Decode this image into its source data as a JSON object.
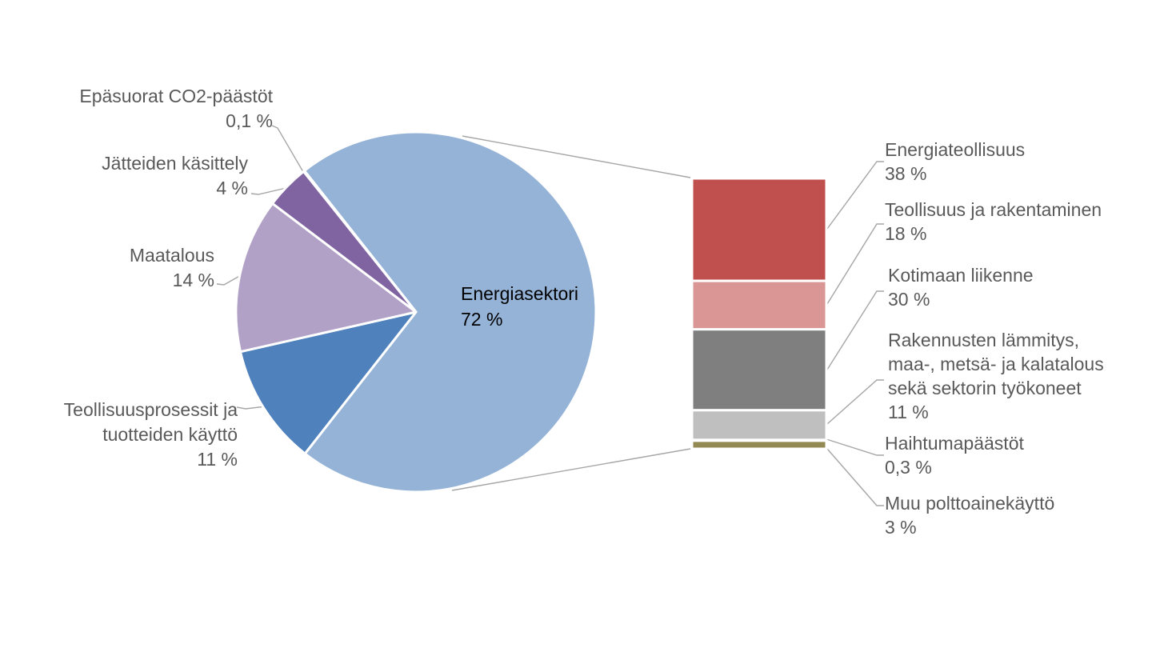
{
  "chart_data": {
    "type": "pie",
    "variant": "bar-of-pie",
    "title": "",
    "legend": "none",
    "label_color": "#595959",
    "inside_label_color": "#000000",
    "leader_line_color": "#A6A6A6",
    "pie": {
      "slices": [
        {
          "label": "Energiasektori",
          "pct_label": "72 %",
          "value": 72,
          "color": "#95B3D7",
          "label_position": "inside"
        },
        {
          "label": "Teollisuusprosessit ja tuotteiden käyttö",
          "pct_label": "11 %",
          "value": 11,
          "color": "#4F81BD",
          "label_position": "outside"
        },
        {
          "label": "Maatalous",
          "pct_label": "14 %",
          "value": 14,
          "color": "#B2A1C7",
          "label_position": "outside"
        },
        {
          "label": "Jätteiden käsittely",
          "pct_label": "4 %",
          "value": 4,
          "color": "#8064A2",
          "label_position": "outside"
        },
        {
          "label": "Epäsuorat CO2-päästöt",
          "pct_label": "0,1 %",
          "value": 0.1,
          "color": "#FFFFFF",
          "label_position": "outside"
        }
      ]
    },
    "bar_breakdown": {
      "of_slice": "Energiasektori",
      "segments": [
        {
          "label": "Energiateollisuus",
          "pct_label": "38 %",
          "value": 38,
          "color": "#C0504D"
        },
        {
          "label": "Teollisuus ja rakentaminen",
          "pct_label": "18 %",
          "value": 18,
          "color": "#D99694"
        },
        {
          "label": "Kotimaan liikenne",
          "pct_label": "30 %",
          "value": 30,
          "color": "#7F7F7F"
        },
        {
          "label": "Rakennusten lämmitys, maa-, metsä- ja kalatalous sekä sektorin työkoneet",
          "pct_label": "11 %",
          "value": 11,
          "color": "#BFBFBF"
        },
        {
          "label": "Haihtumapäästöt",
          "pct_label": "0,3 %",
          "value": 0.3,
          "color": "#FFFFFF"
        },
        {
          "label": "Muu polttoainekäyttö",
          "pct_label": "3 %",
          "value": 3,
          "color": "#938953"
        }
      ]
    }
  },
  "callouts": {
    "inside": {
      "lines": [
        "Energiasektori",
        "72 %"
      ]
    },
    "left": [
      {
        "lines": [
          "Epäsuorat CO2-päästöt",
          "0,1 %"
        ]
      },
      {
        "lines": [
          "Jätteiden käsittely",
          "4 %"
        ]
      },
      {
        "lines": [
          "Maatalous",
          "14 %"
        ]
      },
      {
        "lines": [
          "Teollisuusprosessit ja",
          "tuotteiden käyttö",
          "11 %"
        ]
      }
    ],
    "right": [
      {
        "lines": [
          "Energiateollisuus",
          "38 %"
        ]
      },
      {
        "lines": [
          "Teollisuus ja rakentaminen",
          "18 %"
        ]
      },
      {
        "lines": [
          "Kotimaan liikenne",
          "30 %"
        ]
      },
      {
        "lines": [
          "Rakennusten lämmitys,",
          "maa-, metsä- ja kalatalous",
          "sekä sektorin työkoneet",
          "11 %"
        ]
      },
      {
        "lines": [
          "Haihtumapäästöt",
          "0,3 %"
        ]
      },
      {
        "lines": [
          "Muu polttoainekäyttö",
          "3 %"
        ]
      }
    ]
  }
}
